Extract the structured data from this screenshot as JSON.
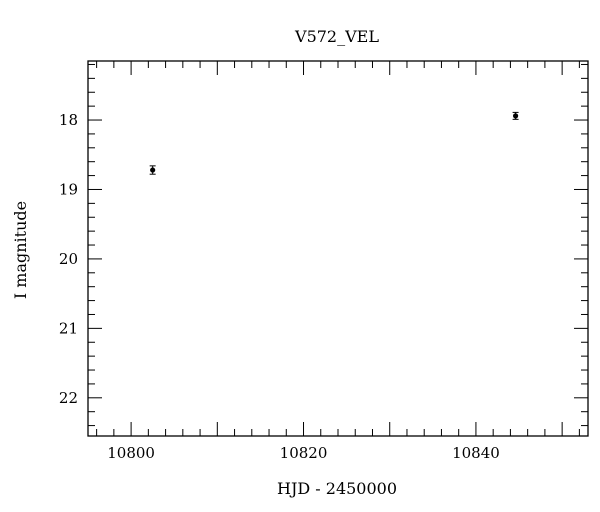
{
  "chart_data": {
    "type": "scatter",
    "title": "V572_VEL",
    "xlabel": "HJD - 2450000",
    "ylabel": "I magnitude",
    "xlim": [
      10795,
      10853
    ],
    "ylim": [
      22.55,
      17.15
    ],
    "y_inverted": true,
    "grid": false,
    "x_ticks": [
      10800,
      10820,
      10840
    ],
    "x_tick_labels": [
      "10800",
      "10820",
      "10840"
    ],
    "y_ticks": [
      18,
      19,
      20,
      21,
      22
    ],
    "y_tick_labels": [
      "18",
      "19",
      "20",
      "21",
      "22"
    ],
    "points": [
      {
        "x": 10802.5,
        "y": 18.72,
        "yerr": 0.06
      },
      {
        "x": 10844.6,
        "y": 17.94,
        "yerr": 0.05
      }
    ]
  }
}
